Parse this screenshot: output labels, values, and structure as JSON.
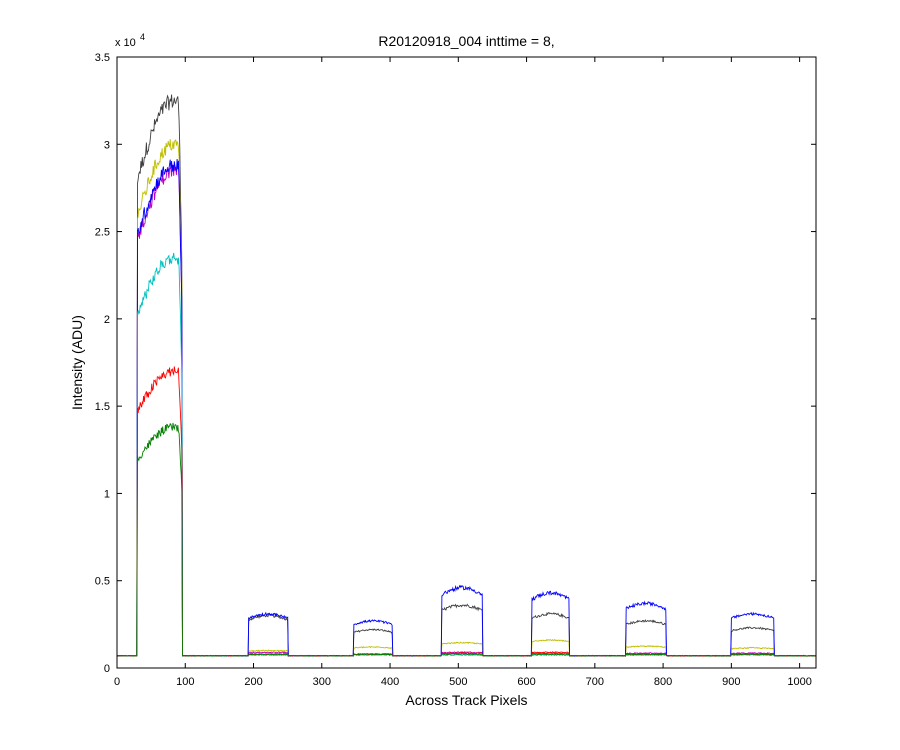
{
  "chart_data": {
    "type": "line",
    "title": "R20120918_004 inttime = 8,",
    "xlabel": "Across Track Pixels",
    "ylabel": "Intensity (ADU)",
    "y_exponent_label": "x 10",
    "y_exponent": "4",
    "xlim": [
      0,
      1024
    ],
    "ylim": [
      0,
      35000
    ],
    "xticks": [
      0,
      100,
      200,
      300,
      400,
      500,
      600,
      700,
      800,
      900,
      1000
    ],
    "yticks": [
      0,
      5000,
      10000,
      15000,
      20000,
      25000,
      30000,
      35000
    ],
    "ytick_labels": [
      "0",
      "0.5",
      "1",
      "1.5",
      "2",
      "2.5",
      "3",
      "3.5"
    ],
    "grid": false,
    "baseline": 700,
    "segments": [
      {
        "x0": 30,
        "x1": 95
      },
      {
        "x0": 193,
        "x1": 250
      },
      {
        "x0": 347,
        "x1": 403
      },
      {
        "x0": 476,
        "x1": 535
      },
      {
        "x0": 608,
        "x1": 662
      },
      {
        "x0": 746,
        "x1": 804
      },
      {
        "x0": 900,
        "x1": 962
      }
    ],
    "series": [
      {
        "color": "#404040",
        "plateaus": [
          32500,
          3000,
          2200,
          3600,
          3100,
          2700,
          2300
        ],
        "noise": 450
      },
      {
        "color": "#bfbf00",
        "plateaus": [
          30000,
          1000,
          1200,
          1450,
          1600,
          1250,
          1150
        ],
        "noise": 400
      },
      {
        "color": "#bf00bf",
        "plateaus": [
          28500,
          900,
          800,
          900,
          850,
          850,
          850
        ],
        "noise": 420
      },
      {
        "color": "#0000ff",
        "plateaus": [
          28800,
          3100,
          2700,
          4600,
          4300,
          3700,
          3100
        ],
        "noise": 420
      },
      {
        "color": "#00bfbf",
        "plateaus": [
          23500,
          750,
          750,
          750,
          750,
          750,
          750
        ],
        "noise": 350
      },
      {
        "color": "#ff0000",
        "plateaus": [
          17000,
          800,
          800,
          850,
          900,
          800,
          800
        ],
        "noise": 300
      },
      {
        "color": "#008000",
        "plateaus": [
          13800,
          780,
          780,
          800,
          780,
          780,
          780
        ],
        "noise": 250
      }
    ]
  }
}
